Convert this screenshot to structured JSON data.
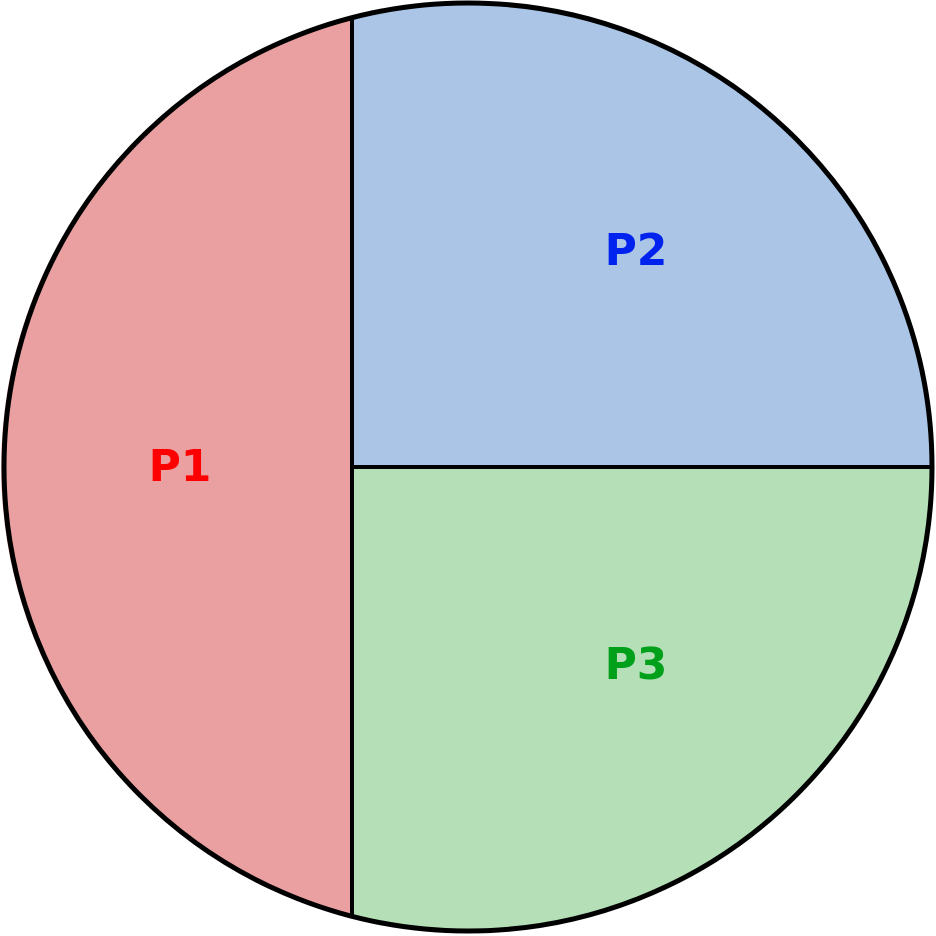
{
  "regions": [
    {
      "id": "p1",
      "label": "P1",
      "fill": "#eaa0a0",
      "label_color": "#ff0000"
    },
    {
      "id": "p2",
      "label": "P2",
      "fill": "#aac5e5",
      "label_color": "#0022ee"
    },
    {
      "id": "p3",
      "label": "P3",
      "fill": "#b5dfb7",
      "label_color": "#00a01a"
    }
  ]
}
